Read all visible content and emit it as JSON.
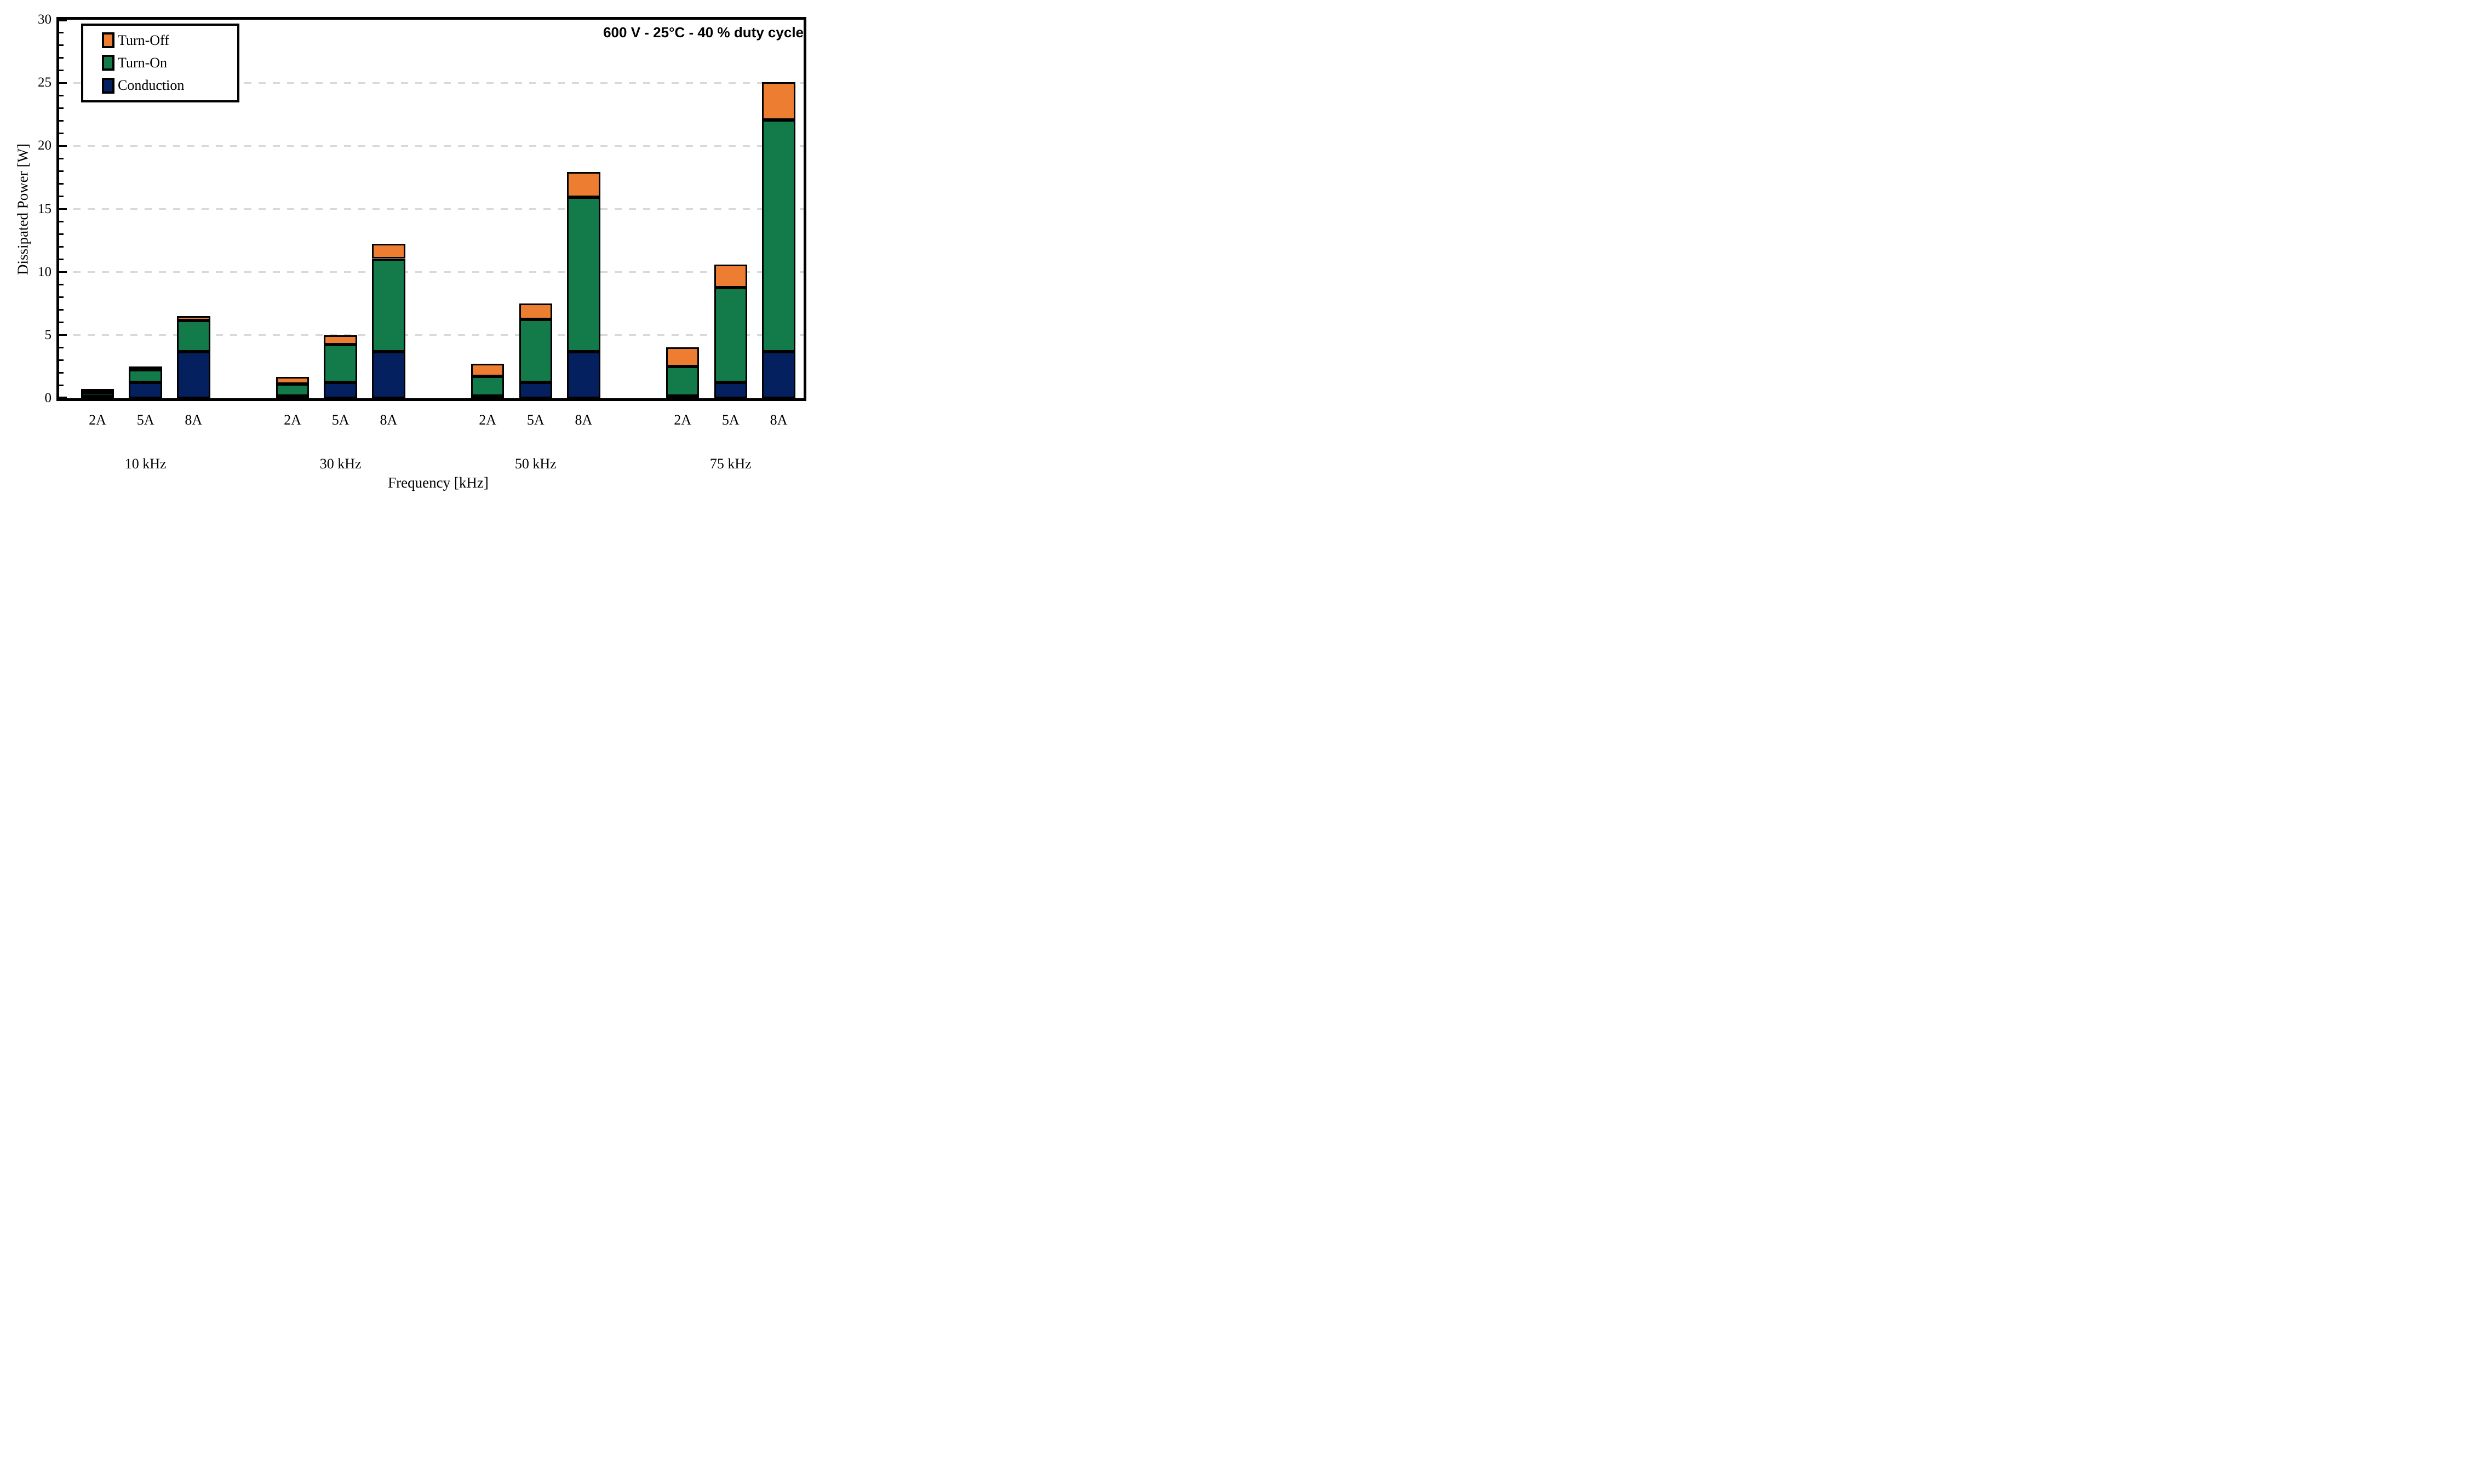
{
  "annotation": {
    "text": "600 V - 25°C - 40 % duty cycle"
  },
  "axes": {
    "y_label": "Dissipated Power [W]",
    "x_label": "Frequency [kHz]",
    "y_min": 0,
    "y_max": 30,
    "y_major_step": 5,
    "y_minor_step": 1,
    "y_tick_labels": [
      "0",
      "5",
      "10",
      "15",
      "20",
      "25",
      "30"
    ]
  },
  "legend": {
    "items": [
      {
        "label": "Turn-Off",
        "color": "#ED7D31"
      },
      {
        "label": "Turn-On",
        "color": "#137B4A"
      },
      {
        "label": "Conduction",
        "color": "#04205E"
      }
    ]
  },
  "colors": {
    "turn_off": "#ED7D31",
    "turn_on": "#137B4A",
    "conduction": "#04205E",
    "gridline": "#D9D9D9",
    "frame": "#000000",
    "background": "#FFFFFF"
  },
  "chart_data": {
    "type": "bar",
    "stacked": true,
    "title": "600 V - 25°C - 40 % duty cycle",
    "xlabel": "Frequency [kHz]",
    "ylabel": "Dissipated Power [W]",
    "ylim": [
      0,
      30
    ],
    "grid": "dashed horizontal at 5,10,15,20,25",
    "legend_position": "top-left inside, boxed",
    "groups": [
      "10 kHz",
      "30 kHz",
      "50 kHz",
      "75 kHz"
    ],
    "bar_labels": [
      "2A",
      "5A",
      "8A"
    ],
    "series": [
      {
        "name": "Conduction",
        "color": "#04205E",
        "values": [
          [
            0.17,
            1.28,
            3.7
          ],
          [
            0.17,
            1.28,
            3.7
          ],
          [
            0.17,
            1.28,
            3.7
          ],
          [
            0.17,
            1.28,
            3.7
          ]
        ]
      },
      {
        "name": "Turn-On",
        "color": "#137B4A",
        "values": [
          [
            0.31,
            0.97,
            2.45
          ],
          [
            0.94,
            2.98,
            7.35
          ],
          [
            1.57,
            4.99,
            12.25
          ],
          [
            2.36,
            7.48,
            18.35
          ]
        ]
      },
      {
        "name": "Turn-Off",
        "color": "#ED7D31",
        "values": [
          [
            0.2,
            0.24,
            0.38
          ],
          [
            0.58,
            0.73,
            1.18
          ],
          [
            1.0,
            1.23,
            2.0
          ],
          [
            1.52,
            1.85,
            3.0
          ]
        ]
      }
    ],
    "totals": [
      [
        0.68,
        2.49,
        6.53
      ],
      [
        1.69,
        4.99,
        12.23
      ],
      [
        2.74,
        7.5,
        17.95
      ],
      [
        4.05,
        10.61,
        25.05
      ]
    ]
  }
}
